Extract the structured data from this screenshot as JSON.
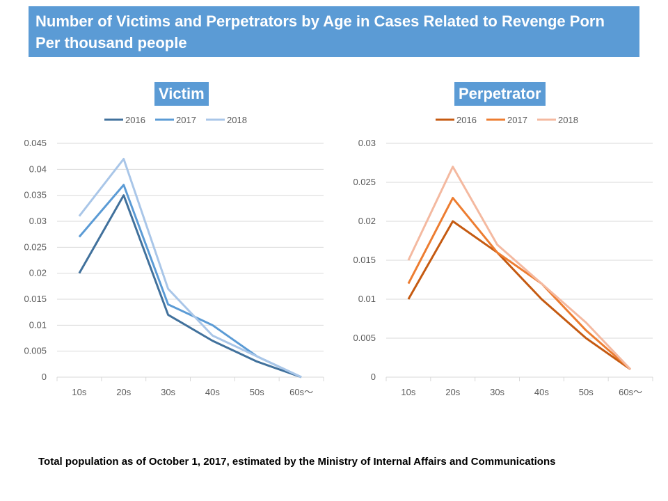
{
  "header": {
    "line1": "Number of Victims and Perpetrators by Age in Cases Related to Revenge Porn",
    "line2": "Per thousand people"
  },
  "footer": "Total population as of October 1, 2017, estimated by the Ministry of Internal Affairs and Communications",
  "chart_data": [
    {
      "type": "line",
      "title": "Victim",
      "categories": [
        "10s",
        "20s",
        "30s",
        "40s",
        "50s",
        "60s～"
      ],
      "ylim": [
        0,
        0.045
      ],
      "yticks": [
        "0",
        "0.005",
        "0.01",
        "0.015",
        "0.02",
        "0.025",
        "0.03",
        "0.035",
        "0.04",
        "0.045"
      ],
      "grid": true,
      "legend": "top",
      "series": [
        {
          "name": "2016",
          "color": "#41719c",
          "values": [
            0.02,
            0.035,
            0.012,
            0.007,
            0.003,
            0
          ]
        },
        {
          "name": "2017",
          "color": "#5b9bd5",
          "values": [
            0.027,
            0.037,
            0.014,
            0.01,
            0.004,
            0
          ]
        },
        {
          "name": "2018",
          "color": "#a9c6e8",
          "values": [
            0.031,
            0.042,
            0.017,
            0.008,
            0.004,
            0
          ]
        }
      ]
    },
    {
      "type": "line",
      "title": "Perpetrator",
      "categories": [
        "10s",
        "20s",
        "30s",
        "40s",
        "50s",
        "60s～"
      ],
      "ylim": [
        0,
        0.03
      ],
      "yticks": [
        "0",
        "0.005",
        "0.01",
        "0.015",
        "0.02",
        "0.025",
        "0.03"
      ],
      "grid": true,
      "legend": "top",
      "series": [
        {
          "name": "2016",
          "color": "#c55a11",
          "values": [
            0.01,
            0.02,
            0.016,
            0.01,
            0.005,
            0.001
          ]
        },
        {
          "name": "2017",
          "color": "#ed7d31",
          "values": [
            0.012,
            0.023,
            0.016,
            0.012,
            0.006,
            0.001
          ]
        },
        {
          "name": "2018",
          "color": "#f4b9a0",
          "values": [
            0.015,
            0.027,
            0.017,
            0.012,
            0.007,
            0.001
          ]
        }
      ]
    }
  ]
}
